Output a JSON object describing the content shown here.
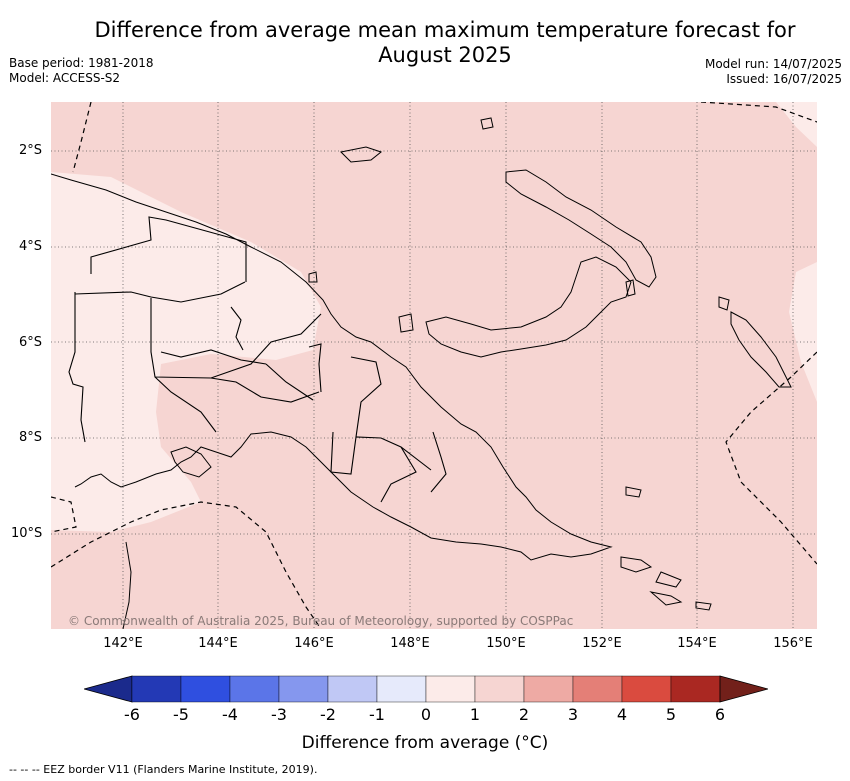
{
  "title_line1": "Difference from average mean maximum temperature forecast for",
  "title_line2": "August 2025",
  "base_period": "Base period: 1981-2018",
  "model": "Model: ACCESS-S2",
  "model_run": "Model run: 14/07/2025",
  "issued": "Issued: 16/07/2025",
  "lat_labels": [
    "2°S",
    "4°S",
    "6°S",
    "8°S",
    "10°S"
  ],
  "lon_labels": [
    "142°E",
    "144°E",
    "146°E",
    "148°E",
    "150°E",
    "152°E",
    "154°E",
    "156°E"
  ],
  "credit": "© Commonwealth of Australia 2025, Bureau of Meteorology, supported by COSPPac",
  "colorbar": {
    "ticks": [
      "-6",
      "-5",
      "-4",
      "-3",
      "-2",
      "-1",
      "0",
      "1",
      "2",
      "3",
      "4",
      "5",
      "6"
    ],
    "colors": [
      "#1b2a8c",
      "#2339b5",
      "#2f4fe0",
      "#5b75e8",
      "#8597ee",
      "#c0c8f5",
      "#e6eafb",
      "#fcebe9",
      "#f6d5d2",
      "#eeaaa4",
      "#e47f77",
      "#da4b3f",
      "#aa2822",
      "#72201a"
    ],
    "label": "Difference from average (°C)"
  },
  "legend_text": "--  --  -- EEZ border V11 (Flanders Marine Institute, 2019)."
}
